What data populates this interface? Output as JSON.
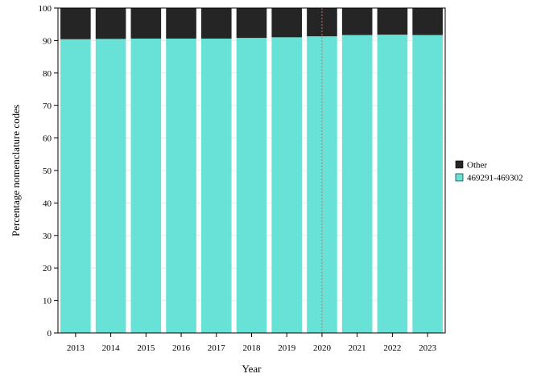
{
  "chart_data": {
    "type": "bar",
    "stacked": true,
    "categories": [
      "2013",
      "2014",
      "2015",
      "2016",
      "2017",
      "2018",
      "2019",
      "2020",
      "2021",
      "2022",
      "2023"
    ],
    "series": [
      {
        "name": "469291-469302",
        "color": "#68E2D6",
        "values": [
          90.4,
          90.5,
          90.6,
          90.6,
          90.6,
          90.8,
          91.0,
          91.3,
          91.7,
          91.8,
          91.7
        ]
      },
      {
        "name": "Other",
        "color": "#252525",
        "values": [
          9.6,
          9.5,
          9.4,
          9.4,
          9.4,
          9.2,
          9.0,
          8.7,
          8.3,
          8.2,
          8.3
        ]
      }
    ],
    "xlabel": "Year",
    "ylabel": "Percentage nomenclature codes",
    "ylim": [
      0,
      100
    ],
    "yticks": [
      0,
      10,
      20,
      30,
      40,
      50,
      60,
      70,
      80,
      90,
      100
    ],
    "grid": true,
    "reference_line": {
      "x": "2020",
      "style": "dotted",
      "color": "#c87070"
    },
    "legend": {
      "position": "right",
      "order": [
        "Other",
        "469291-469302"
      ]
    }
  }
}
